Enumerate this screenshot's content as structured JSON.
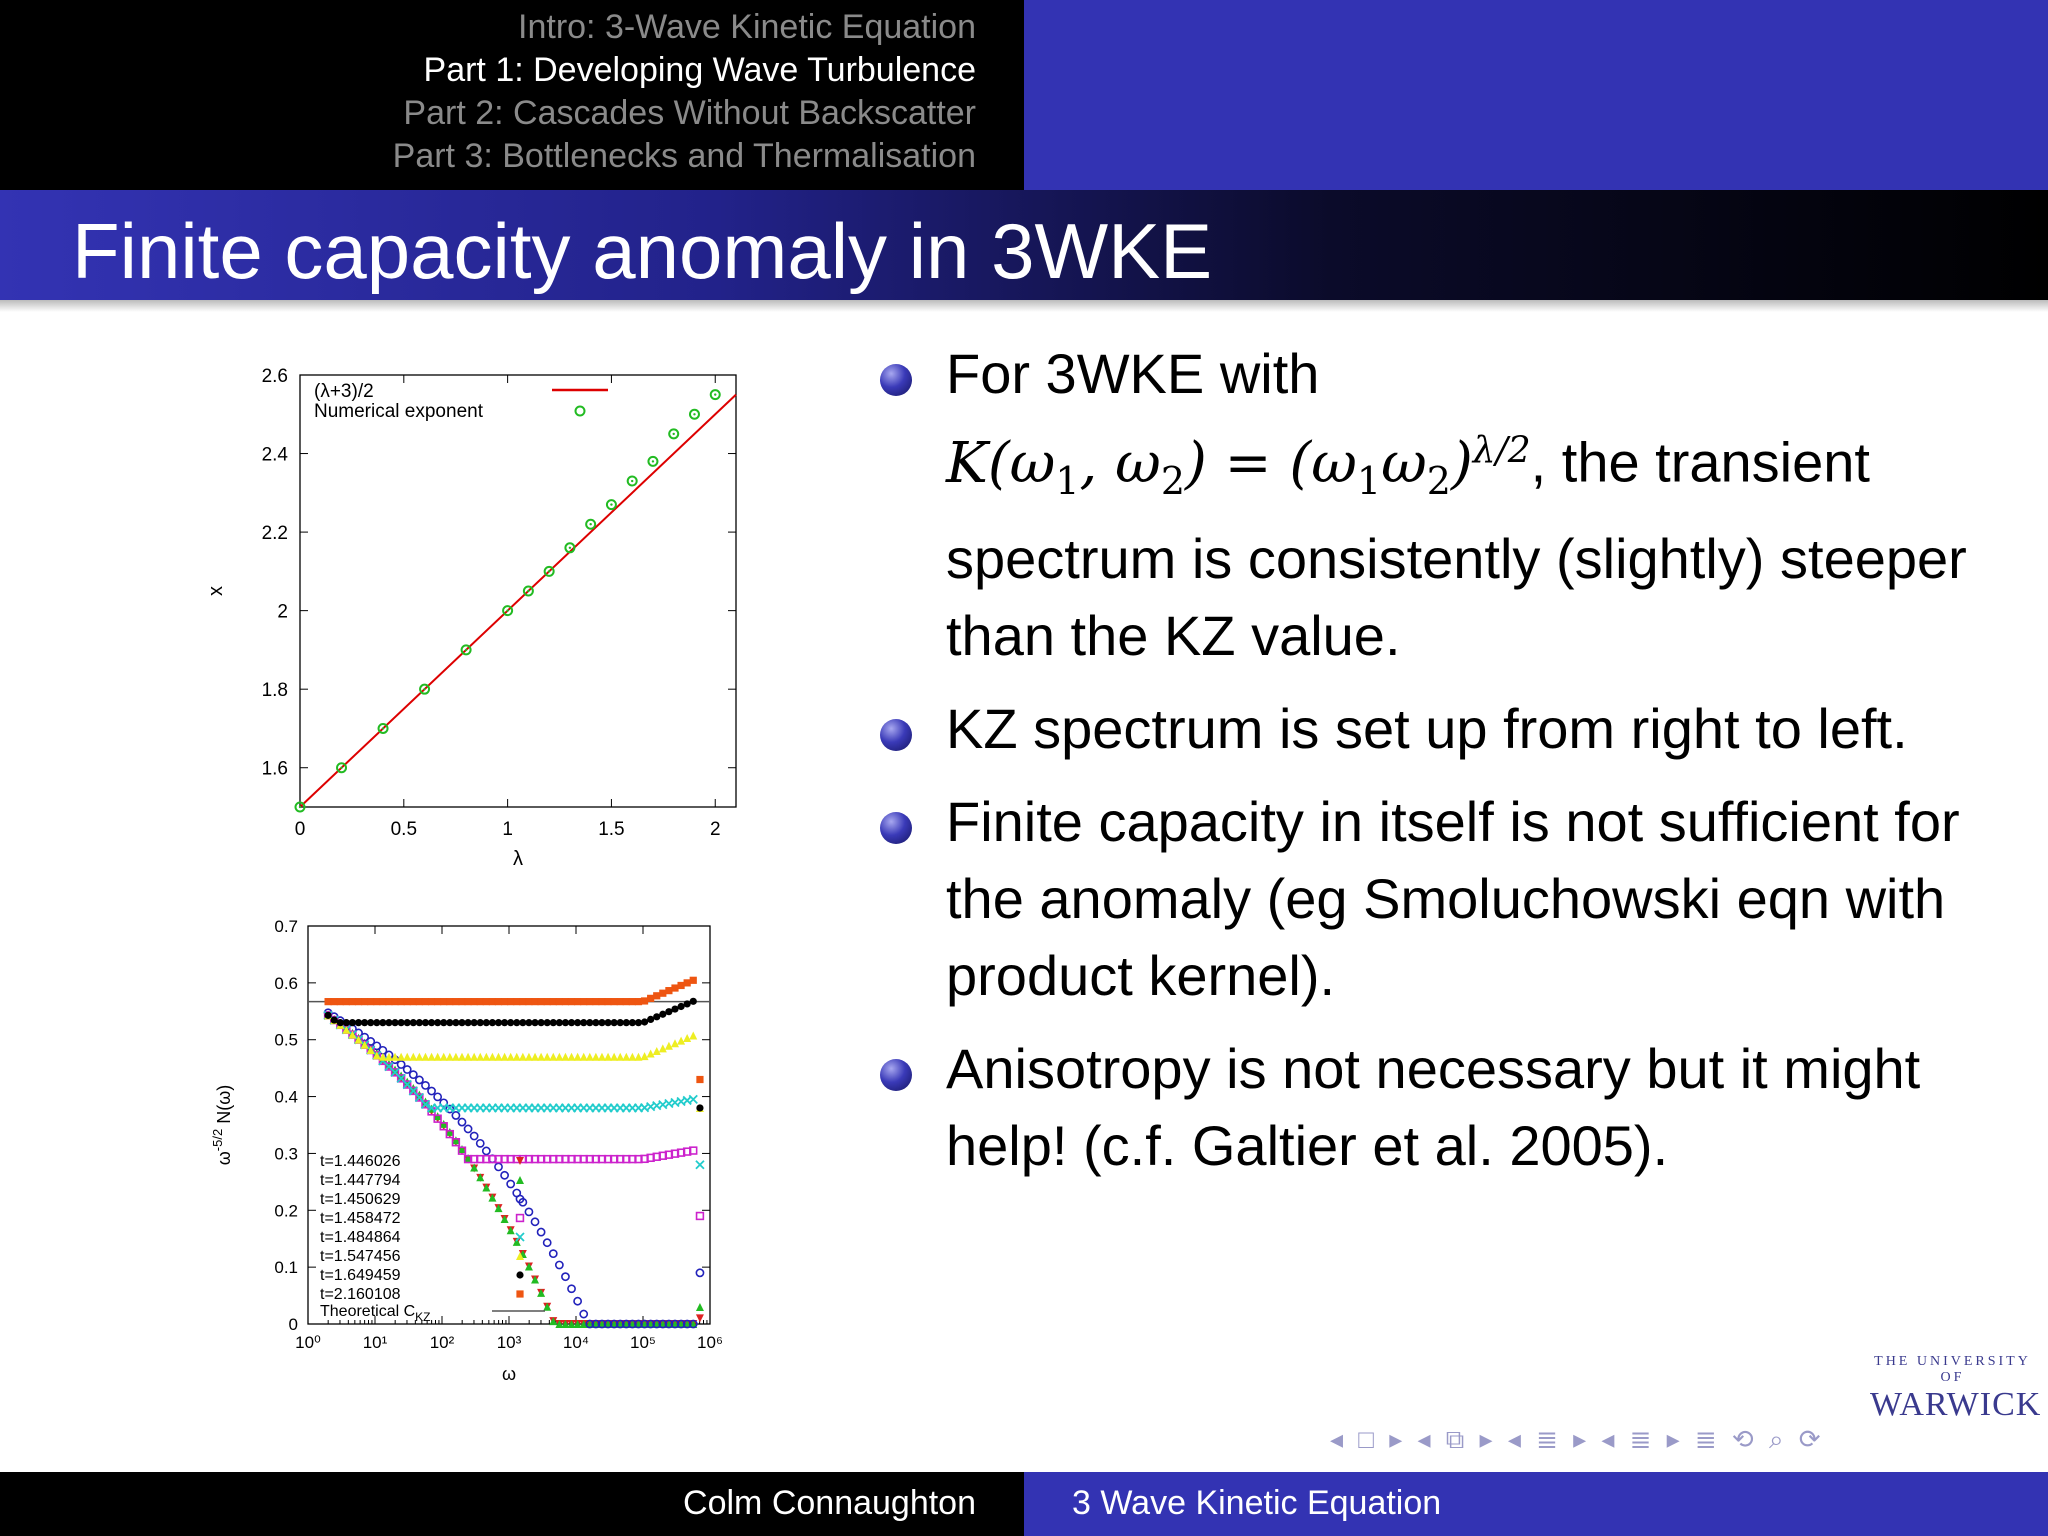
{
  "header": {
    "sections": [
      {
        "label": "Intro: 3-Wave Kinetic Equation",
        "active": false
      },
      {
        "label": "Part 1: Developing Wave Turbulence",
        "active": true
      },
      {
        "label": "Part 2: Cascades Without Backscatter",
        "active": false
      },
      {
        "label": "Part 3: Bottlenecks and Thermalisation",
        "active": false
      }
    ]
  },
  "slide": {
    "title": "Finite capacity anomaly in 3WKE",
    "bullets": [
      {
        "pre": "For 3WKE with",
        "math": "K(ω₁, ω₂) = (ω₁ω₂)^{λ/2}",
        "post": ", the transient spectrum is consistently (slightly) steeper than the KZ value."
      },
      {
        "text": "KZ spectrum is set up from right to left."
      },
      {
        "text": "Finite capacity in itself is not sufficient for the anomaly (eg Smoluchowski eqn with product kernel)."
      },
      {
        "text": "Anisotropy is not necessary but it might help! (c.f. Galtier et al. 2005)."
      }
    ]
  },
  "footer": {
    "author": "Colm Connaughton",
    "talk": "3 Wave Kinetic Equation"
  },
  "logo": {
    "line1": "THE UNIVERSITY OF",
    "line2": "WARWICK"
  },
  "nav": {
    "glyphs": "◂ □ ▸ ◂ ⧉ ▸ ◂ ≣ ▸ ◂ ≣ ▸   ≣   ⟲ ⌕ ⟳"
  },
  "colors": {
    "accent": "#3333b3",
    "header_bg": "#000000",
    "line_red": "#dd0000",
    "marker_green": "#22bb22"
  },
  "chart_data": [
    {
      "type": "scatter",
      "xlabel": "λ",
      "ylabel": "x",
      "xlim": [
        0,
        2.1
      ],
      "ylim": [
        1.5,
        2.6
      ],
      "xticks": [
        "0",
        "0.5",
        "1",
        "1.5",
        "2"
      ],
      "yticks": [
        "1.6",
        "1.8",
        "2",
        "2.2",
        "2.4",
        "2.6"
      ],
      "grid": false,
      "legend": "top-left",
      "series": [
        {
          "name": "(λ+3)/2",
          "kind": "line",
          "color": "#dd0000",
          "x": [
            0,
            2.1
          ],
          "y": [
            1.5,
            2.55
          ]
        },
        {
          "name": "Numerical exponent",
          "kind": "points",
          "color": "#22bb22",
          "x": [
            0,
            0.2,
            0.4,
            0.6,
            0.8,
            1.0,
            1.1,
            1.2,
            1.3,
            1.4,
            1.5,
            1.6,
            1.7,
            1.8,
            1.9,
            2.0
          ],
          "y": [
            1.5,
            1.6,
            1.7,
            1.8,
            1.9,
            2.0,
            2.05,
            2.1,
            2.16,
            2.22,
            2.27,
            2.33,
            2.38,
            2.45,
            2.5,
            2.55
          ]
        }
      ]
    },
    {
      "type": "scatter",
      "xlabel": "ω",
      "ylabel": "ω^{-5/2} N(ω)",
      "xscale": "log",
      "xlim": [
        1,
        1000000
      ],
      "ylim": [
        0,
        0.7
      ],
      "xticks": [
        "10⁰",
        "10¹",
        "10²",
        "10³",
        "10⁴",
        "10⁵",
        "10⁶"
      ],
      "yticks": [
        "0",
        "0.1",
        "0.2",
        "0.3",
        "0.4",
        "0.5",
        "0.6",
        "0.7"
      ],
      "grid": false,
      "legend": "bottom-left",
      "theoretical": {
        "name": "Theoretical C_KZ",
        "value": 0.567,
        "color": "#555555"
      },
      "series": [
        {
          "name": "t=1.446026",
          "marker": "tri-down",
          "color": "#dd2222",
          "plateau": null,
          "end": 0.01
        },
        {
          "name": "t=1.447794",
          "marker": "tri-up",
          "color": "#22bb22",
          "plateau": null,
          "end": 0.03
        },
        {
          "name": "t=1.450629",
          "marker": "circle-open",
          "color": "#2222bb",
          "plateau": null,
          "end": 0.09
        },
        {
          "name": "t=1.458472",
          "marker": "square-open",
          "color": "#cc22cc",
          "plateau": 0.29,
          "end": 0.19
        },
        {
          "name": "t=1.484864",
          "marker": "cross",
          "color": "#22cccc",
          "plateau": 0.38,
          "end": 0.28
        },
        {
          "name": "t=1.547456",
          "marker": "tri-up",
          "color": "#eeee22",
          "plateau": 0.47,
          "end": 0.38
        },
        {
          "name": "t=1.649459",
          "marker": "circle",
          "color": "#000000",
          "plateau": 0.53,
          "end": 0.38
        },
        {
          "name": "t=2.160108",
          "marker": "square",
          "color": "#ee5511",
          "plateau": 0.567,
          "end": 0.43
        }
      ]
    }
  ]
}
